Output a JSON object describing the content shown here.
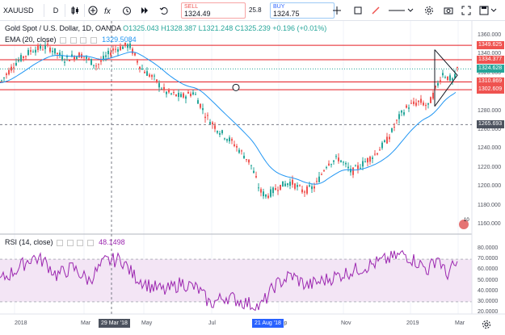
{
  "toolbar": {
    "symbol": "XAUUSD",
    "interval": "D",
    "sell": {
      "label": "SELL",
      "price": "1324.49"
    },
    "buy": {
      "label": "BUY",
      "price": "1324.75"
    },
    "spread": "25.8",
    "icons": [
      "bar-style-icon",
      "indicators-icon",
      "compare-icon",
      "alert-icon",
      "replay-icon",
      "undo-icon",
      "redo-icon",
      "drawing-icon",
      "settings-icon",
      "camera-icon",
      "fullscreen-icon",
      "save-icon"
    ]
  },
  "legend": {
    "title": "Gold Spot / U.S. Dollar, 1D, OANDA",
    "ohlc": "O1325.043 H1328.387 L1321.248 C1325.239 +0.196 (+0.01%)",
    "ema_label": "EMA (20, close)",
    "ema_value": "1329.5084",
    "rsi_label": "RSI (14, close)",
    "rsi_value": "48.1498"
  },
  "price_axis": [
    "1360.000",
    "1340.000",
    "1320.000",
    "1300.000",
    "1280.000",
    "1260.000",
    "1240.000",
    "1220.000",
    "1200.000",
    "1180.000",
    "1160.000"
  ],
  "rsi_axis": [
    "80.0000",
    "70.0000",
    "60.0000",
    "50.0000",
    "40.0000",
    "30.0000",
    "20.0000"
  ],
  "price_tags": [
    {
      "text": "1349.625",
      "color": "#ef5350"
    },
    {
      "text": "1334.377",
      "color": "#ef5350"
    },
    {
      "text": "1324.628",
      "color": "#26a69a"
    },
    {
      "text": "1310.869",
      "color": "#ef5350"
    },
    {
      "text": "1302.609",
      "color": "#ef5350"
    },
    {
      "text": "1265.693",
      "color": "#4c525e"
    }
  ],
  "time_axis": [
    "2018",
    "Mar",
    "May",
    "Jul",
    "Sep",
    "Nov",
    "2019",
    "Mar"
  ],
  "time_tags": [
    {
      "text": "29 Mar '18",
      "style": "dark"
    },
    {
      "text": "21 Aug '18",
      "style": "blue"
    }
  ],
  "badge": "10",
  "colors": {
    "up": "#26a69a",
    "down": "#ef5350",
    "ema": "#2196f3",
    "rsi": "#9c27b0",
    "rsi_band": "#f3e5f5",
    "hline": "#e51c23"
  }
}
